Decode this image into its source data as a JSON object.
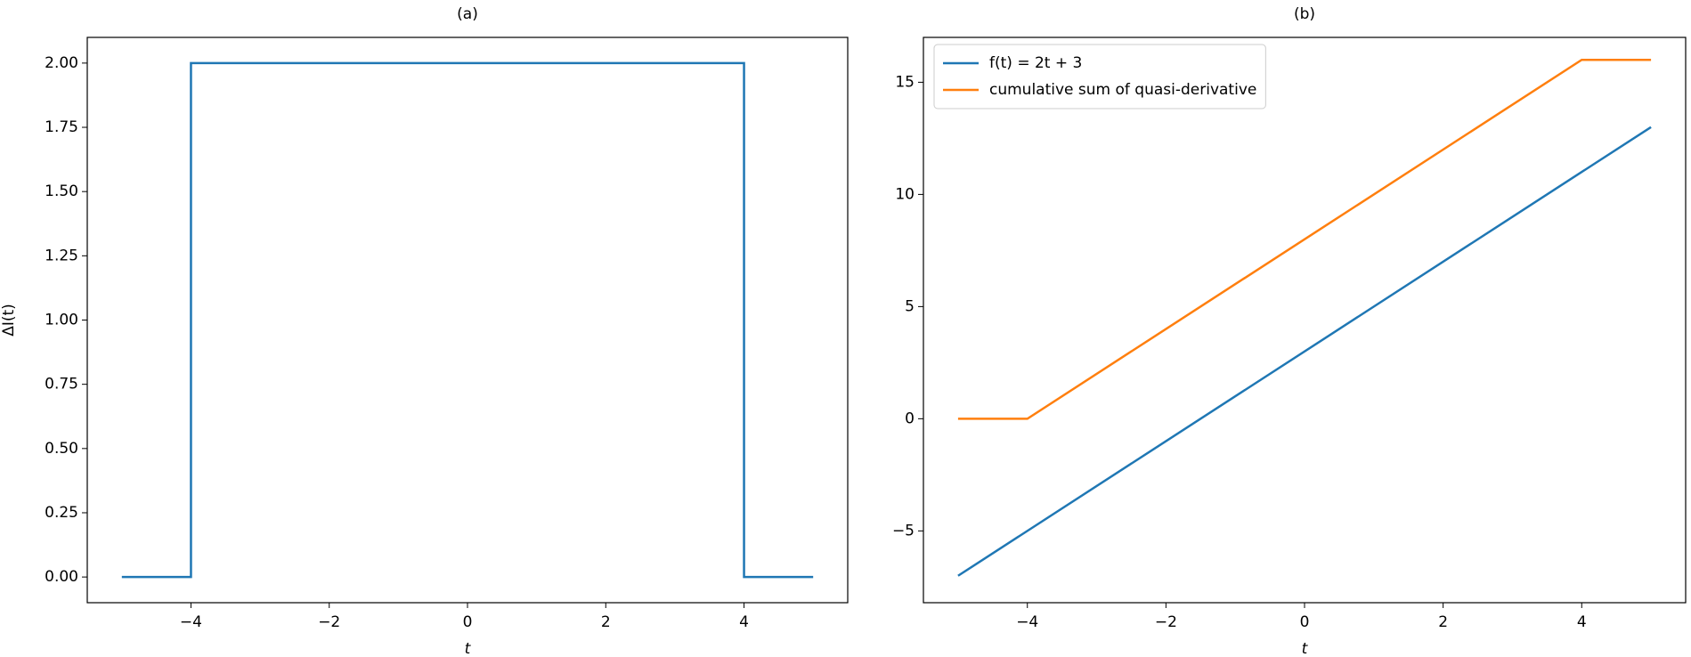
{
  "chart_data": [
    {
      "type": "line",
      "title": "(a)",
      "xlabel": "t",
      "ylabel": "ΔI(t)",
      "x": [
        -5,
        -4,
        -4,
        4,
        4,
        5
      ],
      "values": [
        0,
        0,
        2,
        2,
        0,
        0
      ],
      "color": "#1f77b4",
      "xlim": [
        -5.5,
        5.5
      ],
      "ylim": [
        -0.1,
        2.1
      ],
      "xticks": [
        {
          "value": -4,
          "label": "−4"
        },
        {
          "value": -2,
          "label": "−2"
        },
        0,
        2,
        4
      ],
      "yticks": [
        {
          "value": 0,
          "label": "0.00"
        },
        {
          "value": 0.25,
          "label": "0.25"
        },
        {
          "value": 0.5,
          "label": "0.50"
        },
        {
          "value": 0.75,
          "label": "0.75"
        },
        {
          "value": 1,
          "label": "1.00"
        },
        {
          "value": 1.25,
          "label": "1.25"
        },
        {
          "value": 1.5,
          "label": "1.50"
        },
        {
          "value": 1.75,
          "label": "1.75"
        },
        {
          "value": 2,
          "label": "2.00"
        }
      ],
      "grid": false
    },
    {
      "type": "line",
      "title": "(b)",
      "xlabel": "t",
      "series": [
        {
          "name": "f(t) = 2t + 3",
          "color": "#1f77b4",
          "x": [
            -5,
            5
          ],
          "values": [
            -7,
            13
          ]
        },
        {
          "name": "cumulative sum of quasi-derivative",
          "color": "#ff7f0e",
          "x": [
            -5,
            -4,
            4,
            5
          ],
          "values": [
            0,
            0,
            16,
            16
          ]
        }
      ],
      "xlim": [
        -5.5,
        5.5
      ],
      "ylim": [
        -8.2,
        17
      ],
      "xticks": [
        {
          "value": -4,
          "label": "−4"
        },
        {
          "value": -2,
          "label": "−2"
        },
        0,
        2,
        4
      ],
      "yticks": [
        {
          "value": -5,
          "label": "−5"
        },
        0,
        5,
        10,
        15
      ],
      "legend": "upper left",
      "grid": false
    }
  ]
}
